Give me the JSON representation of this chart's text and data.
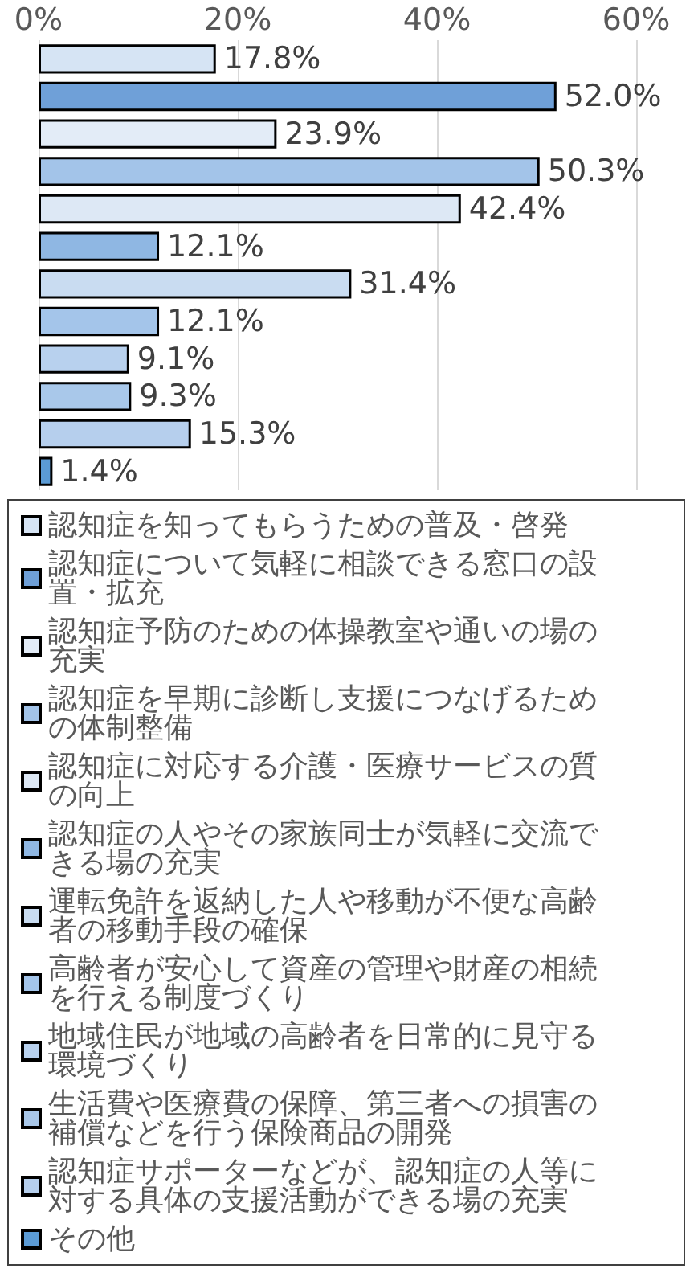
{
  "chart_data": {
    "type": "bar",
    "orientation": "horizontal",
    "categories": [
      null,
      null,
      null,
      null,
      null,
      null,
      null,
      null,
      null,
      null,
      null,
      null
    ],
    "series": [
      {
        "name": "認知症を知ってもらうための普及・啓発",
        "color": "#d6e4f4",
        "values": [
          17.8,
          null,
          null,
          null,
          null,
          null,
          null,
          null,
          null,
          null,
          null,
          null
        ],
        "value_labels": [
          "17.8%",
          null,
          null,
          null,
          null,
          null,
          null,
          null,
          null,
          null,
          null,
          null
        ]
      },
      {
        "name": "認知症について気軽に相談できる窓口の設置・拡充",
        "color": "#6fa0d8",
        "values": [
          null,
          52.0,
          null,
          null,
          null,
          null,
          null,
          null,
          null,
          null,
          null,
          null
        ],
        "value_labels": [
          null,
          "52.0%",
          null,
          null,
          null,
          null,
          null,
          null,
          null,
          null,
          null,
          null
        ]
      },
      {
        "name": "認知症予防のための体操教室や通いの場の充実",
        "color": "#e3ecf7",
        "values": [
          null,
          null,
          23.9,
          null,
          null,
          null,
          null,
          null,
          null,
          null,
          null,
          null
        ],
        "value_labels": [
          null,
          null,
          "23.9%",
          null,
          null,
          null,
          null,
          null,
          null,
          null,
          null,
          null
        ]
      },
      {
        "name": "認知症を早期に診断し支援につなげるための体制整備",
        "color": "#a3c4e9",
        "values": [
          null,
          null,
          null,
          50.3,
          null,
          null,
          null,
          null,
          null,
          null,
          null,
          null
        ],
        "value_labels": [
          null,
          null,
          null,
          "50.3%",
          null,
          null,
          null,
          null,
          null,
          null,
          null,
          null
        ]
      },
      {
        "name": "認知症に対応する介護・医療サービスの質の向上",
        "color": "#dde8f5",
        "values": [
          null,
          null,
          null,
          null,
          42.4,
          null,
          null,
          null,
          null,
          null,
          null,
          null
        ],
        "value_labels": [
          null,
          null,
          null,
          null,
          "42.4%",
          null,
          null,
          null,
          null,
          null,
          null,
          null
        ]
      },
      {
        "name": "認知症の人やその家族同士が気軽に交流できる場の充実",
        "color": "#8fb7e3",
        "values": [
          null,
          null,
          null,
          null,
          null,
          12.1,
          null,
          null,
          null,
          null,
          null,
          null
        ],
        "value_labels": [
          null,
          null,
          null,
          null,
          null,
          "12.1%",
          null,
          null,
          null,
          null,
          null,
          null
        ]
      },
      {
        "name": "運転免許を返納した人や移動が不便な高齢者の移動手段の確保",
        "color": "#c9dcf1",
        "values": [
          null,
          null,
          null,
          null,
          null,
          null,
          31.4,
          null,
          null,
          null,
          null,
          null
        ],
        "value_labels": [
          null,
          null,
          null,
          null,
          null,
          null,
          "31.4%",
          null,
          null,
          null,
          null,
          null
        ]
      },
      {
        "name": "高齢者が安心して資産の管理や財産の相続を行える制度づくり",
        "color": "#a4c5ea",
        "values": [
          null,
          null,
          null,
          null,
          null,
          null,
          null,
          12.1,
          null,
          null,
          null,
          null
        ],
        "value_labels": [
          null,
          null,
          null,
          null,
          null,
          null,
          null,
          "12.1%",
          null,
          null,
          null,
          null
        ]
      },
      {
        "name": "地域住民が地域の高齢者を日常的に見守る環境づくり",
        "color": "#b8d1ee",
        "values": [
          null,
          null,
          null,
          null,
          null,
          null,
          null,
          null,
          9.1,
          null,
          null,
          null
        ],
        "value_labels": [
          null,
          null,
          null,
          null,
          null,
          null,
          null,
          null,
          "9.1%",
          null,
          null,
          null
        ]
      },
      {
        "name": "生活費や医療費の保障、第三者への損害の補償などを行う保険商品の開発",
        "color": "#a9c8ea",
        "values": [
          null,
          null,
          null,
          null,
          null,
          null,
          null,
          null,
          null,
          9.3,
          null,
          null
        ],
        "value_labels": [
          null,
          null,
          null,
          null,
          null,
          null,
          null,
          null,
          null,
          "9.3%",
          null,
          null
        ]
      },
      {
        "name": "認知症サポーターなどが、認知症の人等に対する具体の支援活動ができる場の充実",
        "color": "#b6cfed",
        "values": [
          null,
          null,
          null,
          null,
          null,
          null,
          null,
          null,
          null,
          null,
          15.3,
          null
        ],
        "value_labels": [
          null,
          null,
          null,
          null,
          null,
          null,
          null,
          null,
          null,
          null,
          "15.3%",
          null
        ]
      },
      {
        "name": "その他",
        "color": "#5b9bd5",
        "values": [
          null,
          null,
          null,
          null,
          null,
          null,
          null,
          null,
          null,
          null,
          null,
          1.4
        ],
        "value_labels": [
          null,
          null,
          null,
          null,
          null,
          null,
          null,
          null,
          null,
          null,
          null,
          "1.4%"
        ]
      }
    ],
    "xlim": [
      0,
      60
    ],
    "xticks": [
      {
        "value": 0,
        "label": "0%"
      },
      {
        "value": 20,
        "label": "20%"
      },
      {
        "value": 40,
        "label": "40%"
      },
      {
        "value": 60,
        "label": "60%"
      }
    ],
    "grid": "x",
    "legend": "bottom",
    "tick_labels": "x"
  }
}
